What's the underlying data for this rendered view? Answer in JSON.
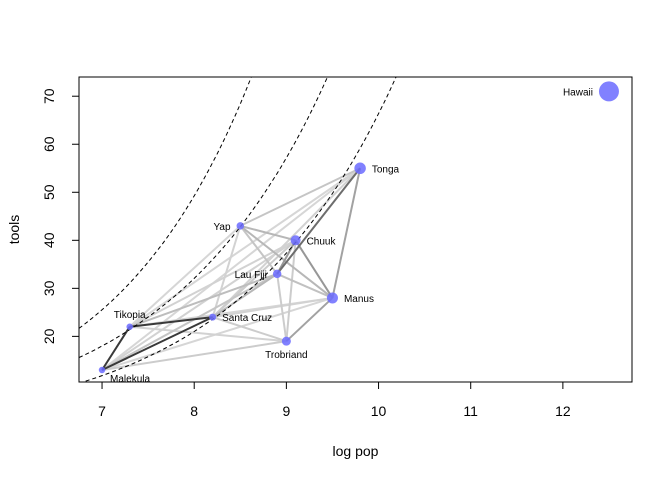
{
  "chart_data": {
    "type": "scatter",
    "xlabel": "log pop",
    "ylabel": "tools",
    "xlim": [
      6.75,
      12.75
    ],
    "ylim": [
      10.5,
      74
    ],
    "x_ticks": [
      7,
      8,
      9,
      10,
      11,
      12
    ],
    "y_ticks": [
      20,
      30,
      40,
      50,
      60,
      70
    ],
    "grid": false,
    "point_color": "#6b6bff",
    "points": [
      {
        "name": "Malekula",
        "x": 7.0,
        "y": 13,
        "size": 0.25,
        "label_pos": "br"
      },
      {
        "name": "Tikopia",
        "x": 7.3,
        "y": 22,
        "size": 0.25,
        "label_pos": "t"
      },
      {
        "name": "Santa Cruz",
        "x": 8.2,
        "y": 24,
        "size": 0.3,
        "label_pos": "r"
      },
      {
        "name": "Yap",
        "x": 8.5,
        "y": 43,
        "size": 0.35,
        "label_pos": "l"
      },
      {
        "name": "Lau Fiji",
        "x": 8.9,
        "y": 33,
        "size": 0.45,
        "label_pos": "l"
      },
      {
        "name": "Trobriand",
        "x": 9.0,
        "y": 19,
        "size": 0.5,
        "label_pos": "b"
      },
      {
        "name": "Chuuk",
        "x": 9.1,
        "y": 40,
        "size": 0.6,
        "label_pos": "r"
      },
      {
        "name": "Manus",
        "x": 9.5,
        "y": 28,
        "size": 0.7,
        "label_pos": "r"
      },
      {
        "name": "Tonga",
        "x": 9.8,
        "y": 55,
        "size": 0.75,
        "label_pos": "r"
      },
      {
        "name": "Hawaii",
        "x": 12.5,
        "y": 71,
        "size": 1.6,
        "label_pos": "l"
      }
    ],
    "pairwise_links": [
      {
        "from": "Malekula",
        "to": "Tikopia",
        "weight": 0.85
      },
      {
        "from": "Malekula",
        "to": "Santa Cruz",
        "weight": 0.85
      },
      {
        "from": "Tikopia",
        "to": "Santa Cruz",
        "weight": 0.85
      },
      {
        "from": "Tonga",
        "to": "Lau Fiji",
        "weight": 0.6
      },
      {
        "from": "Lau Fiji",
        "to": "Chuuk",
        "weight": 0.4
      },
      {
        "from": "Chuuk",
        "to": "Manus",
        "weight": 0.4
      },
      {
        "from": "Manus",
        "to": "Trobriand",
        "weight": 0.35
      },
      {
        "from": "Tonga",
        "to": "Manus",
        "weight": 0.35
      },
      {
        "from": "Yap",
        "to": "Chuuk",
        "weight": 0.25
      },
      {
        "from": "Yap",
        "to": "Manus",
        "weight": 0.25
      },
      {
        "from": "Yap",
        "to": "Tonga",
        "weight": 0.18
      },
      {
        "from": "Santa Cruz",
        "to": "Lau Fiji",
        "weight": 0.25
      },
      {
        "from": "Tikopia",
        "to": "Lau Fiji",
        "weight": 0.22
      },
      {
        "from": "Malekula",
        "to": "Lau Fiji",
        "weight": 0.18
      },
      {
        "from": "Malekula",
        "to": "Trobriand",
        "weight": 0.15
      },
      {
        "from": "Santa Cruz",
        "to": "Trobriand",
        "weight": 0.15
      },
      {
        "from": "Santa Cruz",
        "to": "Chuuk",
        "weight": 0.15
      },
      {
        "from": "Tikopia",
        "to": "Chuuk",
        "weight": 0.12
      },
      {
        "from": "Tikopia",
        "to": "Trobriand",
        "weight": 0.12
      },
      {
        "from": "Trobriand",
        "to": "Chuuk",
        "weight": 0.15
      },
      {
        "from": "Trobriand",
        "to": "Lau Fiji",
        "weight": 0.15
      },
      {
        "from": "Malekula",
        "to": "Chuuk",
        "weight": 0.12
      },
      {
        "from": "Tikopia",
        "to": "Tonga",
        "weight": 0.1
      },
      {
        "from": "Santa Cruz",
        "to": "Tonga",
        "weight": 0.12
      },
      {
        "from": "Malekula",
        "to": "Tonga",
        "weight": 0.1
      },
      {
        "from": "Lau Fiji",
        "to": "Manus",
        "weight": 0.2
      },
      {
        "from": "Santa Cruz",
        "to": "Manus",
        "weight": 0.12
      },
      {
        "from": "Tikopia",
        "to": "Manus",
        "weight": 0.1
      },
      {
        "from": "Malekula",
        "to": "Manus",
        "weight": 0.1
      },
      {
        "from": "Yap",
        "to": "Lau Fiji",
        "weight": 0.18
      },
      {
        "from": "Santa Cruz",
        "to": "Yap",
        "weight": 0.12
      },
      {
        "from": "Tikopia",
        "to": "Yap",
        "weight": 0.1
      }
    ],
    "curves": [
      {
        "style": "dashed",
        "a": 3.24,
        "b": 0.0657
      },
      {
        "style": "dashed",
        "a": 2.89,
        "b": 0.0578
      },
      {
        "style": "dashed",
        "a": 2.47,
        "b": 0.0575
      }
    ]
  }
}
